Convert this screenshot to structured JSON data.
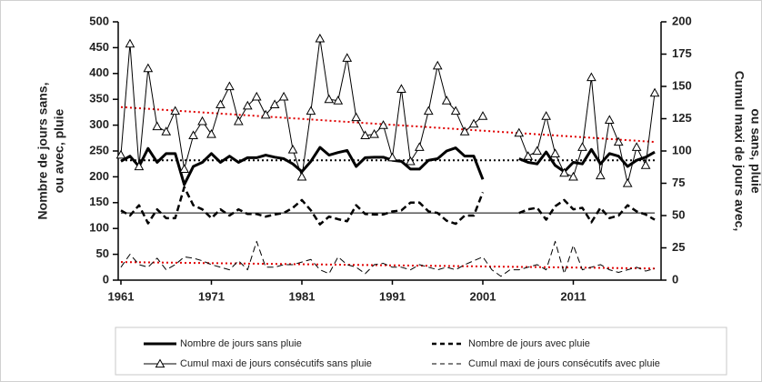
{
  "chart_data": {
    "type": "line",
    "y_label": [
      "Nombre de jours sans,",
      "ou avec, pluie"
    ],
    "y2_label": [
      "Cumul maxi de jours avec,",
      "ou sans, pluie"
    ],
    "x": [
      1961,
      1962,
      1963,
      1964,
      1965,
      1966,
      1967,
      1968,
      1969,
      1970,
      1971,
      1972,
      1973,
      1974,
      1975,
      1976,
      1977,
      1978,
      1979,
      1980,
      1981,
      1982,
      1983,
      1984,
      1985,
      1986,
      1987,
      1988,
      1989,
      1990,
      1991,
      1992,
      1993,
      1994,
      1995,
      1996,
      1997,
      1998,
      1999,
      2000,
      2001,
      2002,
      2003,
      2004,
      2005,
      2006,
      2007,
      2008,
      2009,
      2010,
      2011,
      2012,
      2013,
      2014,
      2015,
      2016,
      2017,
      2018,
      2019,
      2020
    ],
    "xlim": [
      1960.7,
      2020.7
    ],
    "xticks": [
      1961,
      1971,
      1981,
      1991,
      2001,
      2011
    ],
    "ylim": [
      0,
      500
    ],
    "yticks": [
      0,
      50,
      100,
      150,
      200,
      250,
      300,
      350,
      400,
      450,
      500
    ],
    "y2lim": [
      0,
      200
    ],
    "y2ticks": [
      0,
      25,
      50,
      75,
      100,
      125,
      150,
      175,
      200
    ],
    "series": [
      {
        "name": "Nombre de jours sans pluie",
        "color": "#000000",
        "width": 3,
        "dash": "solid",
        "marker": "none",
        "values": [
          230,
          240,
          220,
          255,
          228,
          245,
          245,
          185,
          220,
          228,
          245,
          228,
          240,
          228,
          237,
          237,
          242,
          238,
          235,
          225,
          210,
          230,
          257,
          242,
          247,
          251,
          220,
          237,
          238,
          238,
          232,
          230,
          215,
          215,
          232,
          235,
          250,
          256,
          240,
          240,
          195,
          null,
          null,
          null,
          235,
          228,
          225,
          248,
          222,
          210,
          228,
          225,
          253,
          225,
          245,
          240,
          220,
          232,
          238,
          248
        ]
      },
      {
        "name": "Nombre de jours avec pluie",
        "color": "#000000",
        "width": 2.5,
        "dash": "dashed",
        "marker": "none",
        "values": [
          135,
          125,
          145,
          110,
          137,
          120,
          120,
          180,
          145,
          137,
          120,
          137,
          125,
          137,
          128,
          128,
          123,
          127,
          130,
          140,
          155,
          135,
          108,
          123,
          118,
          114,
          145,
          128,
          127,
          127,
          133,
          135,
          150,
          150,
          133,
          130,
          115,
          109,
          125,
          125,
          170,
          null,
          null,
          null,
          130,
          137,
          140,
          117,
          143,
          155,
          137,
          140,
          112,
          140,
          120,
          125,
          145,
          133,
          127,
          117
        ]
      },
      {
        "name": "Cumul maxi de jours consécutifs sans pluie",
        "color": "#000000",
        "width": 1,
        "dash": "solid",
        "marker": "triangle",
        "axis": "y2",
        "values": [
          97,
          183,
          88,
          164,
          119,
          115,
          131,
          86,
          112,
          123,
          113,
          136,
          150,
          123,
          135,
          142,
          128,
          136,
          142,
          101,
          80,
          131,
          187,
          140,
          139,
          172,
          126,
          112,
          113,
          120,
          95,
          148,
          92,
          103,
          131,
          166,
          139,
          131,
          115,
          121,
          127,
          null,
          null,
          null,
          114,
          96,
          100,
          127,
          98,
          83,
          80,
          103,
          157,
          81,
          124,
          107,
          75,
          103,
          89,
          145
        ]
      },
      {
        "name": "Cumul maxi de jours consécutifs avec pluie",
        "color": "#000000",
        "width": 1,
        "dash": "dashed",
        "marker": "none",
        "axis": "y2",
        "values": [
          10,
          20,
          12,
          10,
          17,
          8,
          12,
          18,
          17,
          15,
          12,
          10,
          8,
          15,
          8,
          30,
          10,
          10,
          12,
          12,
          14,
          16,
          8,
          5,
          18,
          12,
          10,
          5,
          12,
          13,
          10,
          10,
          8,
          12,
          10,
          8,
          10,
          8,
          12,
          15,
          18,
          8,
          3,
          8,
          8,
          10,
          12,
          8,
          30,
          5,
          27,
          8,
          10,
          12,
          8,
          6,
          8,
          10,
          7,
          9
        ]
      }
    ],
    "trend_lines": [
      {
        "axis": "y2",
        "x": [
          1961,
          2020
        ],
        "values": [
          134,
          107
        ],
        "color": "#e00000",
        "dash": "dotted"
      },
      {
        "axis": "y2",
        "x": [
          1961,
          2020
        ],
        "values": [
          14,
          9
        ],
        "color": "#e00000",
        "dash": "dotted"
      },
      {
        "axis": "y",
        "x": [
          1961,
          2020
        ],
        "values": [
          232,
          232
        ],
        "color": "#000000",
        "dash": "dotted"
      },
      {
        "axis": "y",
        "x": [
          1961,
          2020
        ],
        "values": [
          130,
          130
        ],
        "color": "#000000",
        "dash": "solid"
      }
    ]
  }
}
